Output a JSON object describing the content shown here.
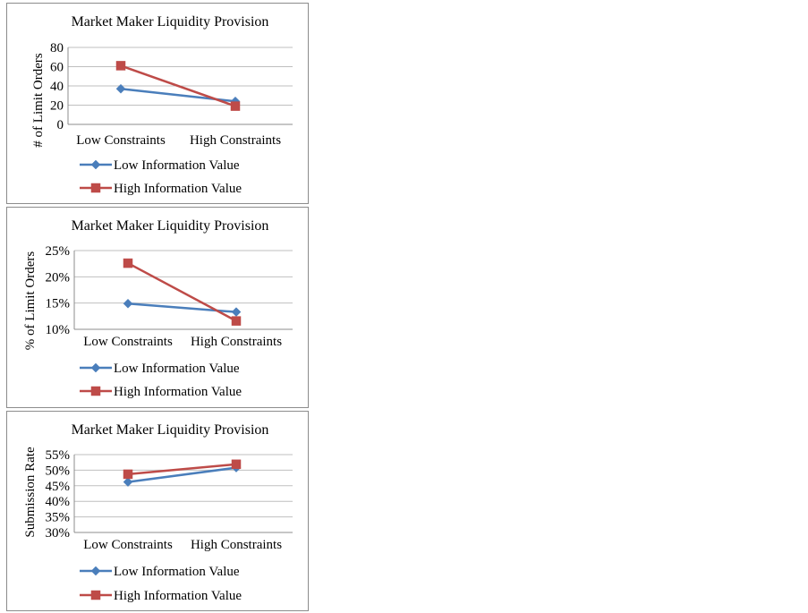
{
  "colors": {
    "low": "#4a7ebb",
    "high": "#be4b48"
  },
  "chart_data": [
    {
      "type": "line",
      "title": "Market Maker Liquidity Provision",
      "ylabel": "# of Limit Orders",
      "categories": [
        "Low Constraints",
        "High Constraints"
      ],
      "ylim": [
        0,
        80
      ],
      "yticks": [
        "0",
        "20",
        "40",
        "60",
        "80"
      ],
      "tick_values": [
        0,
        20,
        40,
        60,
        80
      ],
      "series": [
        {
          "name": "Low Information Value",
          "values": [
            37,
            24
          ],
          "marker": "diamond",
          "color": "#4a7ebb"
        },
        {
          "name": "High Information Value",
          "values": [
            61,
            19
          ],
          "marker": "square",
          "color": "#be4b48"
        }
      ],
      "grid": true,
      "legend": "bottom"
    },
    {
      "type": "line",
      "title": "Market Maker Liquidity Provision",
      "ylabel": "% of Limit Orders",
      "categories": [
        "Low Constraints",
        "High Constraints"
      ],
      "ylim": [
        10,
        25
      ],
      "yticks": [
        "10%",
        "15%",
        "20%",
        "25%"
      ],
      "tick_values": [
        10,
        15,
        20,
        25
      ],
      "series": [
        {
          "name": "Low Information Value",
          "values": [
            14.9,
            13.3
          ],
          "marker": "diamond",
          "color": "#4a7ebb"
        },
        {
          "name": "High Information Value",
          "values": [
            22.6,
            11.6
          ],
          "marker": "square",
          "color": "#be4b48"
        }
      ],
      "grid": true,
      "legend": "bottom"
    },
    {
      "type": "line",
      "title": "Market Maker Liquidity Provision",
      "ylabel": "Submission Rate",
      "categories": [
        "Low Constraints",
        "High Constraints"
      ],
      "ylim": [
        30,
        55
      ],
      "yticks": [
        "30%",
        "35%",
        "40%",
        "45%",
        "50%",
        "55%"
      ],
      "tick_values": [
        30,
        35,
        40,
        45,
        50,
        55
      ],
      "series": [
        {
          "name": "Low Information Value",
          "values": [
            46.2,
            50.8
          ],
          "marker": "diamond",
          "color": "#4a7ebb"
        },
        {
          "name": "High Information Value",
          "values": [
            48.7,
            51.9
          ],
          "marker": "square",
          "color": "#be4b48"
        }
      ],
      "grid": true,
      "legend": "bottom"
    }
  ]
}
